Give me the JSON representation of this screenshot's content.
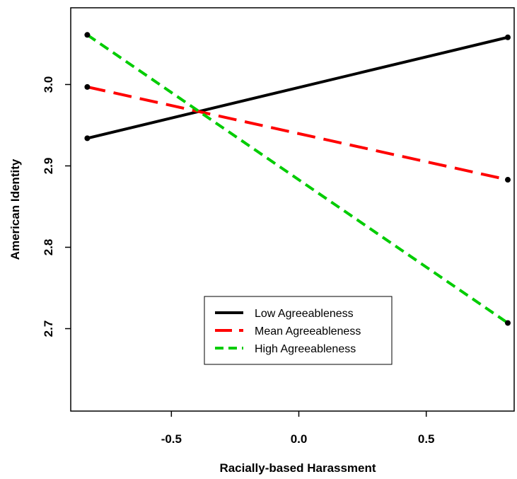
{
  "chart_data": {
    "type": "line",
    "title": "",
    "xlabel": "Racially-based Harassment",
    "ylabel": "American Identity",
    "xlim": [
      -0.895,
      0.845
    ],
    "ylim": [
      2.5987,
      3.0943
    ],
    "x_ticks": [
      {
        "value": -0.5,
        "label": "-0.5"
      },
      {
        "value": 0.0,
        "label": "0.0"
      },
      {
        "value": 0.5,
        "label": "0.5"
      }
    ],
    "y_ticks": [
      {
        "value": 2.7,
        "label": "2.7"
      },
      {
        "value": 2.8,
        "label": "2.8"
      },
      {
        "value": 2.9,
        "label": "2.9"
      },
      {
        "value": 3.0,
        "label": "3.0"
      }
    ],
    "grid": false,
    "legend_position": "lower-center",
    "series": [
      {
        "name": "Low Agreeableness",
        "color": "#000000",
        "dash": "solid",
        "x": [
          -0.83,
          0.82
        ],
        "y": [
          2.934,
          3.058
        ]
      },
      {
        "name": "Mean Agreeableness",
        "color": "#ff0000",
        "dash": "long-dash",
        "x": [
          -0.83,
          0.82
        ],
        "y": [
          2.997,
          2.883
        ]
      },
      {
        "name": "High Agreeableness",
        "color": "#00cc00",
        "dash": "short-dash",
        "x": [
          -0.83,
          0.82
        ],
        "y": [
          3.061,
          2.707
        ]
      }
    ]
  }
}
